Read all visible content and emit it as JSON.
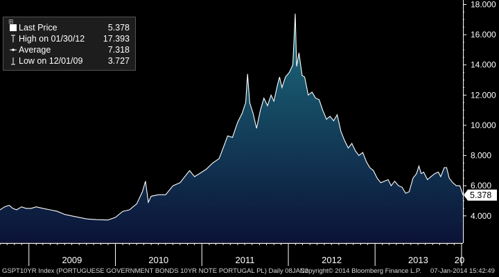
{
  "chart_data": {
    "type": "area",
    "ylim": [
      2.2,
      18.3
    ],
    "y_ticks": [
      4,
      6,
      8,
      10,
      12,
      14,
      16,
      18
    ],
    "y_tick_labels": [
      "4.000",
      "6.000",
      "8.000",
      "10.000",
      "12.000",
      "14.000",
      "16.000",
      "18.000"
    ],
    "x_labels": [
      "2009",
      "2010",
      "2011",
      "2012",
      "2013",
      "20"
    ],
    "x_range": [
      "2008-09-01",
      "2014-01-07"
    ],
    "last_value_label": "5.378",
    "grid": false,
    "legend_position": "top-left",
    "legend": [
      {
        "label": "Last Price",
        "value": "5.378"
      },
      {
        "label": "High on 01/30/12",
        "value": "17.393"
      },
      {
        "label": "Average",
        "value": "7.318"
      },
      {
        "label": "Low on 12/01/09",
        "value": "3.727"
      }
    ],
    "series": [
      {
        "points": [
          [
            "2008-09-01",
            4.4
          ],
          [
            "2008-09-20",
            4.6
          ],
          [
            "2008-10-10",
            4.7
          ],
          [
            "2008-10-25",
            4.5
          ],
          [
            "2008-11-10",
            4.4
          ],
          [
            "2008-12-01",
            4.6
          ],
          [
            "2008-12-20",
            4.5
          ],
          [
            "2009-01-10",
            4.5
          ],
          [
            "2009-02-01",
            4.6
          ],
          [
            "2009-03-01",
            4.5
          ],
          [
            "2009-04-01",
            4.4
          ],
          [
            "2009-05-01",
            4.3
          ],
          [
            "2009-06-01",
            4.1
          ],
          [
            "2009-07-01",
            4.0
          ],
          [
            "2009-08-01",
            3.9
          ],
          [
            "2009-09-01",
            3.8
          ],
          [
            "2009-10-15",
            3.75
          ],
          [
            "2009-12-01",
            3.727
          ],
          [
            "2010-01-01",
            3.9
          ],
          [
            "2010-02-01",
            4.3
          ],
          [
            "2010-03-01",
            4.4
          ],
          [
            "2010-04-01",
            4.8
          ],
          [
            "2010-04-25",
            5.6
          ],
          [
            "2010-05-08",
            6.3
          ],
          [
            "2010-05-20",
            4.9
          ],
          [
            "2010-06-01",
            5.3
          ],
          [
            "2010-07-01",
            5.4
          ],
          [
            "2010-08-01",
            5.4
          ],
          [
            "2010-09-01",
            6.0
          ],
          [
            "2010-10-01",
            6.2
          ],
          [
            "2010-11-10",
            7.0
          ],
          [
            "2010-12-01",
            6.6
          ],
          [
            "2011-01-01",
            6.9
          ],
          [
            "2011-01-20",
            7.1
          ],
          [
            "2011-02-15",
            7.5
          ],
          [
            "2011-03-15",
            7.8
          ],
          [
            "2011-04-01",
            8.5
          ],
          [
            "2011-04-20",
            9.3
          ],
          [
            "2011-05-10",
            9.2
          ],
          [
            "2011-06-01",
            10.2
          ],
          [
            "2011-06-20",
            10.8
          ],
          [
            "2011-07-05",
            11.5
          ],
          [
            "2011-07-13",
            13.4
          ],
          [
            "2011-07-22",
            11.5
          ],
          [
            "2011-08-05",
            10.8
          ],
          [
            "2011-08-20",
            9.8
          ],
          [
            "2011-09-05",
            11.0
          ],
          [
            "2011-09-20",
            11.8
          ],
          [
            "2011-10-05",
            11.3
          ],
          [
            "2011-10-20",
            12.0
          ],
          [
            "2011-11-01",
            11.6
          ],
          [
            "2011-11-15",
            12.6
          ],
          [
            "2011-11-25",
            13.2
          ],
          [
            "2011-12-05",
            12.5
          ],
          [
            "2011-12-20",
            13.2
          ],
          [
            "2012-01-05",
            13.5
          ],
          [
            "2012-01-20",
            14.0
          ],
          [
            "2012-01-30",
            17.393
          ],
          [
            "2012-02-05",
            13.9
          ],
          [
            "2012-02-15",
            14.8
          ],
          [
            "2012-02-28",
            13.3
          ],
          [
            "2012-03-10",
            13.2
          ],
          [
            "2012-03-25",
            12.0
          ],
          [
            "2012-04-10",
            12.2
          ],
          [
            "2012-04-25",
            11.8
          ],
          [
            "2012-05-10",
            11.7
          ],
          [
            "2012-05-25",
            11.0
          ],
          [
            "2012-06-10",
            10.4
          ],
          [
            "2012-06-25",
            10.6
          ],
          [
            "2012-07-10",
            10.3
          ],
          [
            "2012-07-25",
            10.7
          ],
          [
            "2012-08-10",
            9.6
          ],
          [
            "2012-08-25",
            9.0
          ],
          [
            "2012-09-10",
            8.5
          ],
          [
            "2012-09-25",
            8.8
          ],
          [
            "2012-10-10",
            8.3
          ],
          [
            "2012-10-25",
            8.0
          ],
          [
            "2012-11-10",
            8.2
          ],
          [
            "2012-11-25",
            7.6
          ],
          [
            "2012-12-10",
            7.2
          ],
          [
            "2012-12-25",
            7.0
          ],
          [
            "2013-01-10",
            6.5
          ],
          [
            "2013-01-25",
            6.2
          ],
          [
            "2013-02-10",
            6.3
          ],
          [
            "2013-02-25",
            6.4
          ],
          [
            "2013-03-10",
            6.0
          ],
          [
            "2013-03-25",
            6.3
          ],
          [
            "2013-04-10",
            6.0
          ],
          [
            "2013-04-25",
            5.9
          ],
          [
            "2013-05-10",
            5.5
          ],
          [
            "2013-05-25",
            5.6
          ],
          [
            "2013-06-10",
            6.5
          ],
          [
            "2013-06-25",
            6.8
          ],
          [
            "2013-07-05",
            7.3
          ],
          [
            "2013-07-15",
            6.8
          ],
          [
            "2013-07-25",
            6.9
          ],
          [
            "2013-08-10",
            6.4
          ],
          [
            "2013-08-25",
            6.6
          ],
          [
            "2013-09-10",
            6.8
          ],
          [
            "2013-09-25",
            6.9
          ],
          [
            "2013-10-05",
            6.6
          ],
          [
            "2013-10-20",
            7.2
          ],
          [
            "2013-10-30",
            7.2
          ],
          [
            "2013-11-10",
            6.5
          ],
          [
            "2013-11-25",
            6.2
          ],
          [
            "2013-12-10",
            6.0
          ],
          [
            "2013-12-25",
            6.0
          ],
          [
            "2014-01-07",
            5.378
          ]
        ]
      }
    ]
  },
  "footer": {
    "left": "GSPT10YR Index (PORTUGUESE GOVERNMENT BONDS 10YR NOTE PORTUGAL PL)  Daily 08JAN2",
    "middle": "Copyright© 2014 Bloomberg Finance L.P.",
    "right": "07-Jan-2014 15:42:49"
  },
  "colors": {
    "background": "#000000",
    "line": "#ffffff",
    "area_top": "#1c6f80",
    "area_bottom": "#0b1237",
    "axis": "#ffffff"
  }
}
